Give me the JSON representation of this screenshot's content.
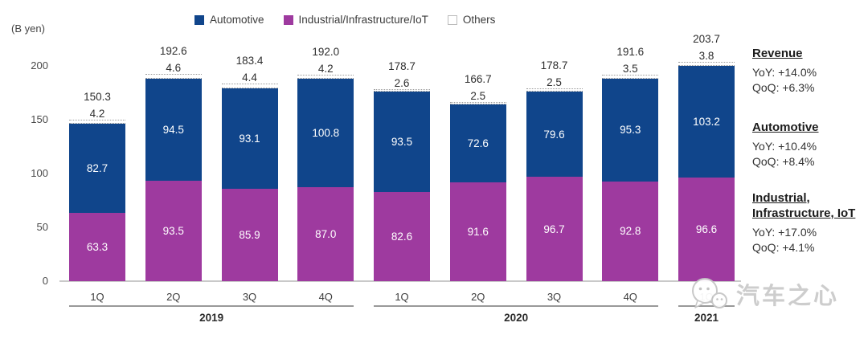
{
  "chart_data": {
    "type": "bar",
    "stacked": true,
    "unit_label": "(B yen)",
    "ylim": [
      0,
      200
    ],
    "yticks": [
      200,
      150,
      100,
      50,
      0
    ],
    "grid": false,
    "legend_position": "top",
    "groups": [
      {
        "year": "2019",
        "quarters": [
          "1Q",
          "2Q",
          "3Q",
          "4Q"
        ]
      },
      {
        "year": "2020",
        "quarters": [
          "1Q",
          "2Q",
          "3Q",
          "4Q"
        ]
      },
      {
        "year": "2021",
        "quarters": [
          "1Q"
        ]
      }
    ],
    "series": [
      {
        "name": "Industrial/Infrastructure/IoT",
        "color": "#9e3a9f",
        "values": [
          63.3,
          93.5,
          85.9,
          87.0,
          82.6,
          91.6,
          96.7,
          92.8,
          96.6
        ]
      },
      {
        "name": "Automotive",
        "color": "#10458b",
        "values": [
          82.7,
          94.5,
          93.1,
          100.8,
          93.5,
          72.6,
          79.6,
          95.3,
          103.2
        ]
      },
      {
        "name": "Others",
        "color": "#ffffff",
        "values": [
          4.2,
          4.6,
          4.4,
          4.2,
          2.6,
          2.5,
          2.5,
          3.5,
          3.8
        ]
      }
    ],
    "totals": [
      150.3,
      192.6,
      183.4,
      192.0,
      178.7,
      166.7,
      178.7,
      191.6,
      203.7
    ],
    "legend": [
      {
        "label": "Automotive",
        "color": "#10458b"
      },
      {
        "label": "Industrial/Infrastructure/IoT",
        "color": "#9e3a9f"
      },
      {
        "label": "Others",
        "color": "#ffffff"
      }
    ]
  },
  "side_panel": {
    "sections": [
      {
        "title": "Revenue",
        "lines": [
          "YoY: +14.0%",
          "QoQ: +6.3%"
        ]
      },
      {
        "title": "Automotive",
        "lines": [
          "YoY: +10.4%",
          "QoQ: +8.4%"
        ]
      },
      {
        "title": "Industrial,\nInfrastructure, IoT",
        "lines": [
          "YoY: +17.0%",
          "QoQ: +4.1%"
        ]
      }
    ]
  },
  "watermark": {
    "text": "汽车之心"
  }
}
